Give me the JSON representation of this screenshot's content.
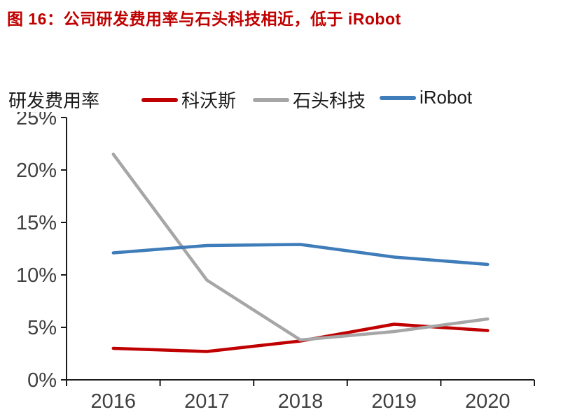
{
  "title": "图 16：公司研发费用率与石头科技相近，低于 iRobot",
  "colors": {
    "title": "#c00000",
    "axis": "#1a1a1a",
    "tick_label": "#404040"
  },
  "chart_data": {
    "type": "line",
    "title": "图 16：公司研发费用率与石头科技相近，低于 iRobot",
    "ylabel": "研发费用率",
    "xlabel": "",
    "categories": [
      "2016",
      "2017",
      "2018",
      "2019",
      "2020"
    ],
    "series": [
      {
        "key": "kewosi",
        "name": "科沃斯",
        "color": "#c00000",
        "values": [
          3.0,
          2.7,
          3.7,
          5.3,
          4.7
        ]
      },
      {
        "key": "shitou-keji",
        "name": "石头科技",
        "color": "#a6a6a6",
        "values": [
          21.5,
          9.5,
          3.8,
          4.6,
          5.8
        ]
      },
      {
        "key": "irobot",
        "name": "iRobot",
        "color": "#3f7cba",
        "values": [
          12.1,
          12.8,
          12.9,
          11.7,
          11.0
        ]
      }
    ],
    "ylim": [
      0,
      25
    ],
    "yticks": [
      {
        "value": 0,
        "label": "0%"
      },
      {
        "value": 5,
        "label": "5%"
      },
      {
        "value": 10,
        "label": "10%"
      },
      {
        "value": 15,
        "label": "15%"
      },
      {
        "value": 20,
        "label": "20%"
      },
      {
        "value": 25,
        "label": "25%"
      }
    ],
    "legend_position": "top",
    "grid": false
  }
}
